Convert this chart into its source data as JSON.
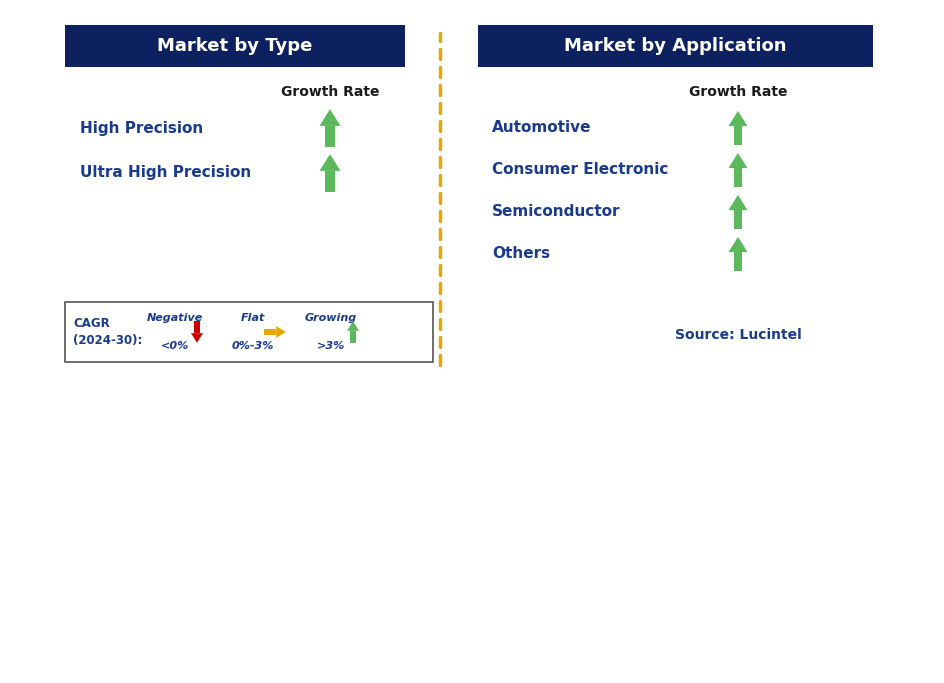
{
  "title_left": "Market by Type",
  "title_right": "Market by Application",
  "title_bg_color": "#0d2060",
  "title_text_color": "#ffffff",
  "left_items": [
    "High Precision",
    "Ultra High Precision"
  ],
  "right_items": [
    "Automotive",
    "Consumer Electronic",
    "Semiconductor",
    "Others"
  ],
  "item_text_color": "#1a3a8c",
  "growth_rate_label": "Growth Rate",
  "growth_rate_color": "#1a1a1a",
  "arrow_up_color": "#5cb85c",
  "arrow_down_color": "#cc0000",
  "arrow_flat_color": "#e6a800",
  "divider_color": "#e6a800",
  "source_text": "Source: Lucintel",
  "source_color": "#1a3a8c",
  "legend_cagr_label": "CAGR\n(2024-30):",
  "legend_negative_label": "Negative",
  "legend_negative_sublabel": "<0%",
  "legend_flat_label": "Flat",
  "legend_flat_sublabel": "0%-3%",
  "legend_growing_label": "Growing",
  "legend_growing_sublabel": ">3%",
  "legend_text_color": "#1a3a8c",
  "bg_color": "#ffffff",
  "fig_width": 9.45,
  "fig_height": 6.83,
  "dpi": 100
}
